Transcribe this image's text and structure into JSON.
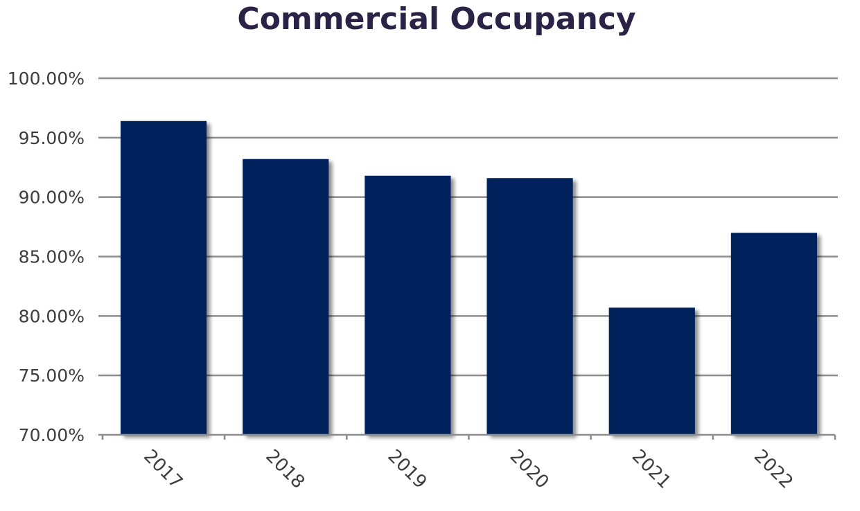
{
  "chart_data": {
    "type": "bar",
    "title": "Commercial Occupancy",
    "xlabel": "",
    "ylabel": "",
    "categories": [
      "2017",
      "2018",
      "2019",
      "2020",
      "2021",
      "2022"
    ],
    "values": [
      96.4,
      93.2,
      91.8,
      91.6,
      80.7,
      87.0
    ],
    "ylim": [
      70,
      100
    ],
    "y_ticks": [
      70,
      75,
      80,
      85,
      90,
      95,
      100
    ],
    "y_tick_labels": [
      "70.00%",
      "75.00%",
      "80.00%",
      "85.00%",
      "90.00%",
      "95.00%",
      "100.00%"
    ],
    "grid": true,
    "legend": "none",
    "bar_color": "#03215c",
    "title_color": "#2a2346"
  }
}
